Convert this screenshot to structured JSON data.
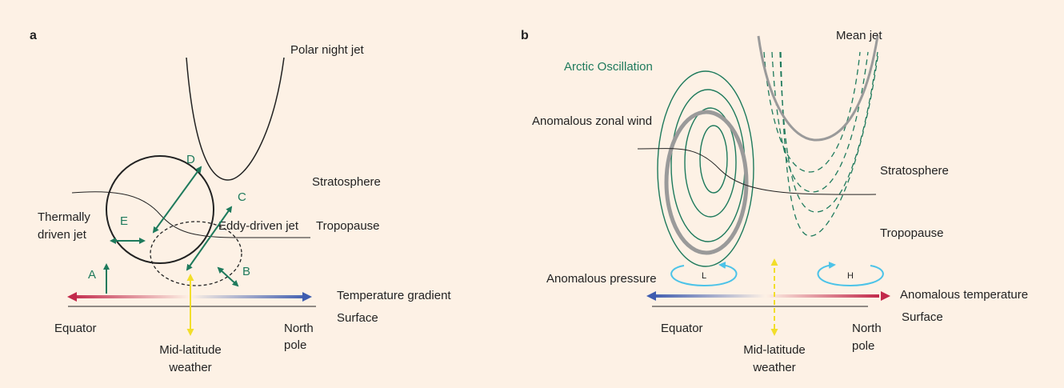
{
  "panel_a": {
    "label": "a",
    "polar_night_jet": "Polar night jet",
    "stratosphere": "Stratosphere",
    "tropopause": "Tropopause",
    "eddy_driven_jet": "Eddy-driven jet",
    "thermally_driven_jet": [
      "Thermally",
      "driven jet"
    ],
    "arrows": [
      "A",
      "B",
      "C",
      "D",
      "E"
    ],
    "temperature_gradient": "Temperature gradient",
    "surface": "Surface",
    "equator": "Equator",
    "north_pole": [
      "North",
      "pole"
    ],
    "weather": [
      "Mid-latitude",
      "weather"
    ]
  },
  "panel_b": {
    "label": "b",
    "mean_jet": "Mean jet",
    "arctic_oscillation": "Arctic Oscillation",
    "anomalous_zonal_wind": "Anomalous zonal wind",
    "stratosphere": "Stratosphere",
    "tropopause": "Tropopause",
    "anomalous_pressure": "Anomalous pressure",
    "low": "L",
    "high": "H",
    "anomalous_temperature": "Anomalous temperature",
    "surface": "Surface",
    "equator": "Equator",
    "north_pole": [
      "North",
      "pole"
    ],
    "weather": [
      "Mid-latitude",
      "weather"
    ]
  }
}
